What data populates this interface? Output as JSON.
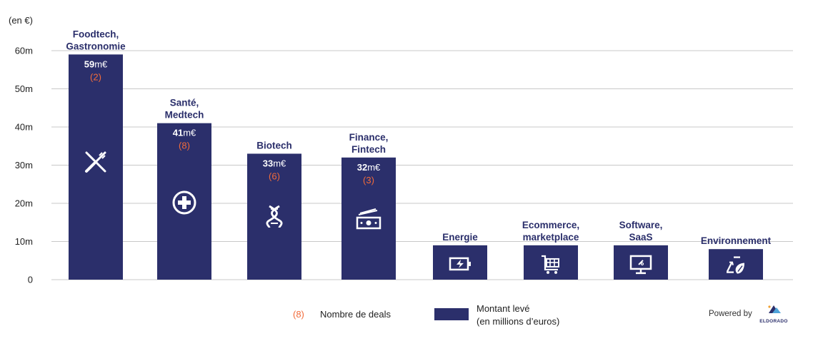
{
  "chart_data": {
    "type": "bar",
    "unit_label": "(en €)",
    "y_ticks": [
      {
        "value": 0,
        "label": "0"
      },
      {
        "value": 10,
        "label": "10m"
      },
      {
        "value": 20,
        "label": "20m"
      },
      {
        "value": 30,
        "label": "30m"
      },
      {
        "value": 40,
        "label": "40m"
      },
      {
        "value": 50,
        "label": "50m"
      },
      {
        "value": 60,
        "label": "60m"
      }
    ],
    "ylim": [
      0,
      60
    ],
    "grid": true,
    "bar_color": "#2b2f6b",
    "deals_color": "#f26b3a",
    "bars": [
      {
        "category_lines": [
          "Foodtech,",
          "Gastronomie"
        ],
        "value": 59,
        "value_number": "59",
        "value_unit": "m€",
        "deals": "(2)",
        "icon": "fork-knife-icon"
      },
      {
        "category_lines": [
          "Santé,",
          "Medtech"
        ],
        "value": 41,
        "value_number": "41",
        "value_unit": "m€",
        "deals": "(8)",
        "icon": "medical-cross-icon"
      },
      {
        "category_lines": [
          "Biotech"
        ],
        "value": 33,
        "value_number": "33",
        "value_unit": "m€",
        "deals": "(6)",
        "icon": "dna-icon"
      },
      {
        "category_lines": [
          "Finance,",
          "Fintech"
        ],
        "value": 32,
        "value_number": "32",
        "value_unit": "m€",
        "deals": "(3)",
        "icon": "banknotes-icon"
      },
      {
        "category_lines": [
          "Energie"
        ],
        "value": 9,
        "value_number": "",
        "value_unit": "",
        "deals": "",
        "icon": "battery-charging-icon"
      },
      {
        "category_lines": [
          "Ecommerce,",
          "marketplace"
        ],
        "value": 9,
        "value_number": "",
        "value_unit": "",
        "deals": "",
        "icon": "shopping-cart-icon"
      },
      {
        "category_lines": [
          "Software,",
          "SaaS"
        ],
        "value": 9,
        "value_number": "",
        "value_unit": "",
        "deals": "",
        "icon": "monitor-icon"
      },
      {
        "category_lines": [
          "Environnement"
        ],
        "value": 8,
        "value_number": "",
        "value_unit": "",
        "deals": "",
        "icon": "recycle-icon"
      }
    ],
    "legend": {
      "deals_sample": "(8)",
      "deals_label": "Nombre de deals",
      "amount_label_lines": [
        "Montant levé",
        "(en millions d’euros)"
      ]
    }
  },
  "footer": {
    "powered_by": "Powered by",
    "brand": "ELDORADO"
  }
}
